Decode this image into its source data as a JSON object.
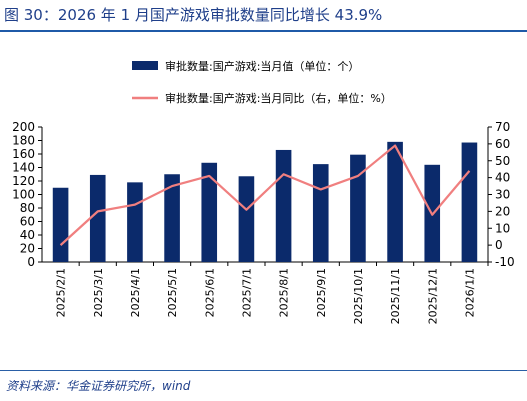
{
  "header": {
    "title": "图 30：2026 年 1 月国产游戏审批数量同比增长 43.9%"
  },
  "footer": {
    "source": "资料来源：华金证券研究所，wind"
  },
  "colors": {
    "bar": "#0b2a6b",
    "line": "#f07f7f",
    "title": "#1f3f8a",
    "rule": "#1f5aa8"
  },
  "chart_data": {
    "type": "bar",
    "categories": [
      "2025/2/1",
      "2025/3/1",
      "2025/4/1",
      "2025/5/1",
      "2025/6/1",
      "2025/7/1",
      "2025/8/1",
      "2025/9/1",
      "2025/10/1",
      "2025/11/1",
      "2025/12/1",
      "2026/1/1"
    ],
    "series": [
      {
        "name": "审批数量:国产游戏:当月值（单位：个）",
        "type": "bar",
        "axis": "left",
        "values": [
          110,
          129,
          118,
          130,
          147,
          127,
          166,
          145,
          159,
          178,
          144,
          177
        ]
      },
      {
        "name": "审批数量:国产游戏:当月同比（右，单位：%）",
        "type": "line",
        "axis": "right",
        "values": [
          0,
          20,
          24,
          35,
          41,
          21,
          42,
          33,
          41,
          59,
          18,
          44
        ]
      }
    ],
    "y_left": {
      "lim": [
        0,
        200
      ],
      "ticks": [
        "0",
        "20",
        "40",
        "60",
        "80",
        "100",
        "120",
        "140",
        "160",
        "180",
        "200"
      ]
    },
    "y_right": {
      "lim": [
        -10,
        70
      ],
      "ticks": [
        "-10",
        "0",
        "10",
        "20",
        "30",
        "40",
        "50",
        "60",
        "70"
      ]
    },
    "legend_position": "top-center",
    "grid": false
  }
}
